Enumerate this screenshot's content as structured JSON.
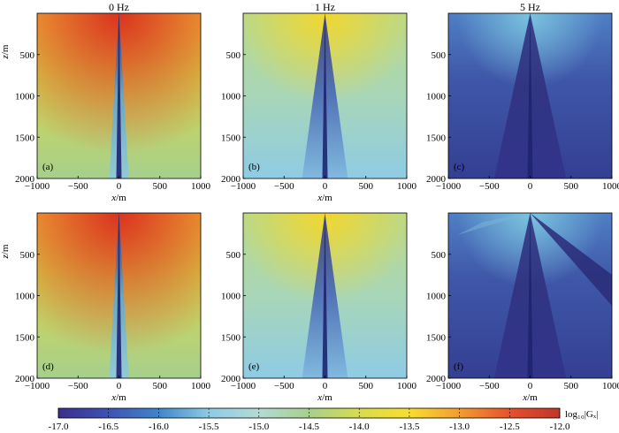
{
  "chart_data": [
    {
      "type": "heatmap",
      "title": "0 Hz",
      "panel_label": "(a)",
      "xlabel": "x/m",
      "ylabel": "z/m",
      "xlim": [
        -1000,
        1000
      ],
      "ylim": [
        2000,
        0
      ],
      "x_ticks": [
        -1000,
        -500,
        0,
        500,
        1000
      ],
      "y_ticks": [
        500,
        1000,
        1500,
        2000
      ]
    },
    {
      "type": "heatmap",
      "title": "1 Hz",
      "panel_label": "(b)",
      "xlabel": "x/m",
      "ylabel": "",
      "xlim": [
        -1000,
        1000
      ],
      "ylim": [
        2000,
        0
      ],
      "x_ticks": [
        -1000,
        -500,
        0,
        500,
        1000
      ],
      "y_ticks": [
        500,
        1000,
        1500,
        2000
      ]
    },
    {
      "type": "heatmap",
      "title": "5 Hz",
      "panel_label": "(c)",
      "xlabel": "",
      "ylabel": "",
      "xlim": [
        -1000,
        1000
      ],
      "ylim": [
        2000,
        0
      ],
      "x_ticks": [
        -1000,
        -500,
        0,
        500,
        1000
      ],
      "y_ticks": [
        500,
        1000,
        1500,
        2000
      ]
    },
    {
      "type": "heatmap",
      "title": "",
      "panel_label": "(d)",
      "xlabel": "x/m",
      "ylabel": "z/m",
      "xlim": [
        -1000,
        1000
      ],
      "ylim": [
        2000,
        0
      ],
      "x_ticks": [
        -1000,
        -500,
        0,
        500,
        1000
      ],
      "y_ticks": [
        500,
        1000,
        1500,
        2000
      ]
    },
    {
      "type": "heatmap",
      "title": "",
      "panel_label": "(e)",
      "xlabel": "x/m",
      "ylabel": "",
      "xlim": [
        -1000,
        1000
      ],
      "ylim": [
        2000,
        0
      ],
      "x_ticks": [
        -1000,
        -500,
        0,
        500,
        1000
      ],
      "y_ticks": [
        500,
        1000,
        1500,
        2000
      ]
    },
    {
      "type": "heatmap",
      "title": "",
      "panel_label": "(f)",
      "xlabel": "x/m",
      "ylabel": "",
      "xlim": [
        -1000,
        1000
      ],
      "ylim": [
        2000,
        0
      ],
      "x_ticks": [
        -1000,
        -500,
        0,
        500,
        1000
      ],
      "y_ticks": [
        500,
        1000,
        1500,
        2000
      ]
    }
  ],
  "colorbar": {
    "label": "log₁₀|Gₓ|",
    "range": [
      -17.0,
      -12.0
    ],
    "ticks": [
      "-17.0",
      "-16.5",
      "-16.0",
      "-15.5",
      "-15.0",
      "-14.5",
      "-14.0",
      "-13.5",
      "-13.0",
      "-12.5",
      "-12.0"
    ],
    "colors": [
      "#3b2f8e",
      "#3f52b6",
      "#3f86c8",
      "#8dcbe6",
      "#b4dbd4",
      "#a6d08d",
      "#d9dc4c",
      "#f9de2e",
      "#f39d2f",
      "#e6512a",
      "#c0362a"
    ]
  }
}
